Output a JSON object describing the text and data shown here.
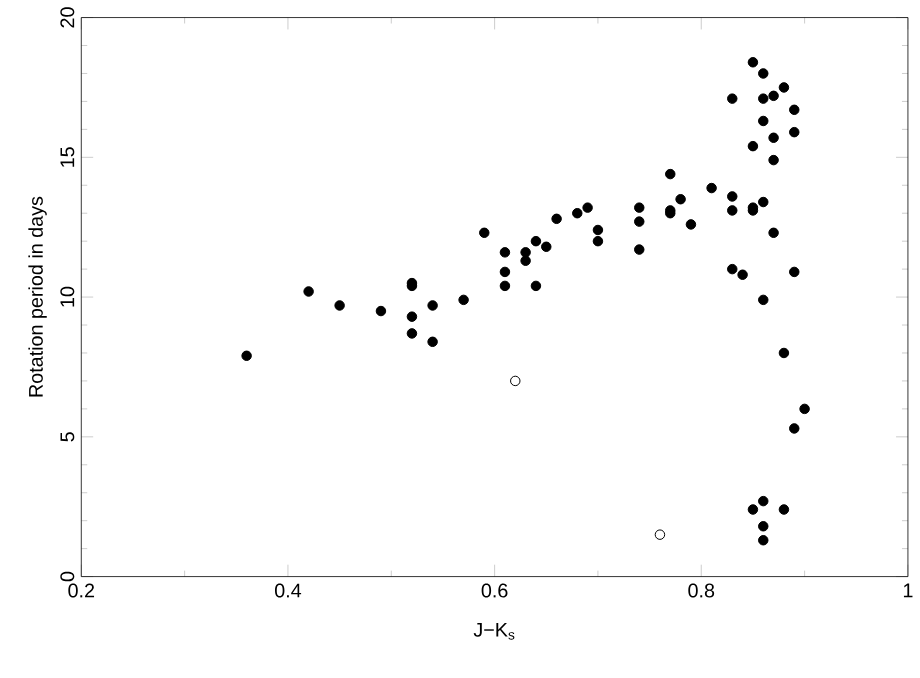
{
  "chart_data": {
    "type": "scatter",
    "xlabel": "J−K$_{s}$",
    "ylabel": "Rotation period in days",
    "xlim": [
      0.2,
      1
    ],
    "ylim": [
      0,
      20
    ],
    "xticks": [
      0.2,
      0.4,
      0.6,
      0.8,
      1
    ],
    "yticks": [
      0,
      5,
      10,
      15,
      20
    ],
    "series": [
      {
        "color": "#000000",
        "x": [
          0.36,
          0.42,
          0.45,
          0.49,
          0.52,
          0.52,
          0.52,
          0.52,
          0.54,
          0.54,
          0.57,
          0.59,
          0.61,
          0.61,
          0.61,
          0.63,
          0.63,
          0.64,
          0.64,
          0.65,
          0.66,
          0.68,
          0.69,
          0.7,
          0.7,
          0.74,
          0.74,
          0.74,
          0.77,
          0.77,
          0.77,
          0.78,
          0.79,
          0.81,
          0.83,
          0.83,
          0.83,
          0.83,
          0.84,
          0.85,
          0.85,
          0.85,
          0.86,
          0.86,
          0.86,
          0.85,
          0.86,
          0.86,
          0.87,
          0.87,
          0.87,
          0.87,
          0.88,
          0.89,
          0.89,
          0.89,
          0.88,
          0.9,
          0.89,
          0.85,
          0.86,
          0.88,
          0.86,
          0.86
        ],
        "values": [
          7.9,
          10.2,
          9.7,
          9.5,
          9.3,
          8.7,
          10.5,
          10.4,
          9.7,
          8.4,
          9.9,
          12.3,
          11.6,
          10.9,
          10.4,
          11.6,
          11.3,
          12.0,
          10.4,
          11.8,
          12.8,
          13.0,
          13.2,
          12.4,
          12.0,
          12.7,
          13.2,
          11.7,
          13.1,
          13.0,
          14.4,
          13.5,
          12.6,
          13.9,
          13.1,
          13.6,
          17.1,
          11.0,
          10.8,
          15.4,
          13.1,
          18.4,
          18.0,
          17.1,
          16.3,
          13.2,
          13.4,
          9.9,
          12.3,
          17.2,
          15.7,
          14.9,
          17.5,
          16.7,
          15.9,
          10.9,
          8.0,
          6.0,
          5.3,
          2.4,
          2.7,
          2.4,
          1.8,
          1.3
        ]
      },
      {
        "color": "#000000",
        "x": [
          0.62,
          0.76
        ],
        "values": [
          7.0,
          1.5
        ]
      }
    ]
  }
}
